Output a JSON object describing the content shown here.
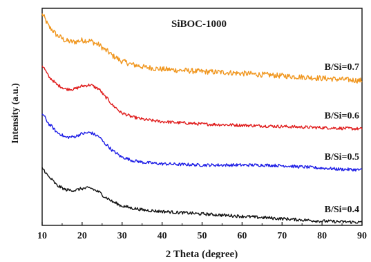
{
  "chart_data": {
    "type": "line",
    "title": "SiBOC-1000",
    "xlabel": "2 Theta (degree)",
    "ylabel": "Intensity (a.u.)",
    "xlim": [
      10,
      90
    ],
    "x_ticks": [
      "10",
      "20",
      "30",
      "40",
      "50",
      "60",
      "70",
      "80",
      "90"
    ],
    "y_ticks_shown": false,
    "grid": false,
    "legend": "none",
    "series_labels_note": "labels printed at the right end of each curve",
    "series": [
      {
        "name": "B/Si=0.7",
        "color": "#f0961e",
        "noise": 0.045,
        "points": [
          [
            10,
            3.5
          ],
          [
            12,
            3.27
          ],
          [
            14,
            3.14
          ],
          [
            16,
            3.06
          ],
          [
            18,
            3.04
          ],
          [
            20,
            3.07
          ],
          [
            22,
            3.06
          ],
          [
            24,
            3.0
          ],
          [
            26,
            2.9
          ],
          [
            28,
            2.8
          ],
          [
            30,
            2.72
          ],
          [
            33,
            2.66
          ],
          [
            36,
            2.62
          ],
          [
            40,
            2.59
          ],
          [
            45,
            2.57
          ],
          [
            50,
            2.55
          ],
          [
            55,
            2.54
          ],
          [
            60,
            2.52
          ],
          [
            65,
            2.5
          ],
          [
            70,
            2.48
          ],
          [
            75,
            2.46
          ],
          [
            80,
            2.44
          ],
          [
            85,
            2.42
          ],
          [
            90,
            2.4
          ]
        ]
      },
      {
        "name": "B/Si=0.6",
        "color": "#e01e1e",
        "noise": 0.025,
        "points": [
          [
            10,
            2.65
          ],
          [
            12,
            2.44
          ],
          [
            14,
            2.32
          ],
          [
            16,
            2.26
          ],
          [
            18,
            2.26
          ],
          [
            20,
            2.31
          ],
          [
            22,
            2.33
          ],
          [
            24,
            2.27
          ],
          [
            26,
            2.12
          ],
          [
            28,
            1.97
          ],
          [
            30,
            1.86
          ],
          [
            33,
            1.79
          ],
          [
            36,
            1.75
          ],
          [
            40,
            1.72
          ],
          [
            45,
            1.7
          ],
          [
            50,
            1.68
          ],
          [
            55,
            1.67
          ],
          [
            60,
            1.66
          ],
          [
            65,
            1.65
          ],
          [
            70,
            1.64
          ],
          [
            75,
            1.63
          ],
          [
            80,
            1.62
          ],
          [
            85,
            1.61
          ],
          [
            90,
            1.6
          ]
        ]
      },
      {
        "name": "B/Si=0.5",
        "color": "#1e1ee6",
        "noise": 0.025,
        "points": [
          [
            10,
            1.85
          ],
          [
            12,
            1.66
          ],
          [
            14,
            1.53
          ],
          [
            16,
            1.46
          ],
          [
            18,
            1.47
          ],
          [
            20,
            1.52
          ],
          [
            22,
            1.54
          ],
          [
            24,
            1.48
          ],
          [
            26,
            1.34
          ],
          [
            28,
            1.22
          ],
          [
            30,
            1.13
          ],
          [
            33,
            1.07
          ],
          [
            36,
            1.04
          ],
          [
            40,
            1.02
          ],
          [
            45,
            1.01
          ],
          [
            50,
            1.0
          ],
          [
            55,
            1.0
          ],
          [
            60,
            1.0
          ],
          [
            65,
            1.0
          ],
          [
            70,
            0.99
          ],
          [
            75,
            0.97
          ],
          [
            80,
            0.95
          ],
          [
            85,
            0.93
          ],
          [
            90,
            0.92
          ]
        ]
      },
      {
        "name": "B/Si=0.4",
        "color": "#111111",
        "noise": 0.025,
        "points": [
          [
            10,
            0.95
          ],
          [
            12,
            0.78
          ],
          [
            14,
            0.65
          ],
          [
            16,
            0.59
          ],
          [
            18,
            0.58
          ],
          [
            20,
            0.61
          ],
          [
            22,
            0.62
          ],
          [
            24,
            0.56
          ],
          [
            26,
            0.46
          ],
          [
            28,
            0.38
          ],
          [
            30,
            0.32
          ],
          [
            33,
            0.28
          ],
          [
            36,
            0.25
          ],
          [
            40,
            0.23
          ],
          [
            45,
            0.21
          ],
          [
            50,
            0.19
          ],
          [
            55,
            0.17
          ],
          [
            60,
            0.15
          ],
          [
            65,
            0.13
          ],
          [
            70,
            0.11
          ],
          [
            75,
            0.09
          ],
          [
            80,
            0.07
          ],
          [
            85,
            0.06
          ],
          [
            90,
            0.05
          ]
        ]
      }
    ]
  }
}
